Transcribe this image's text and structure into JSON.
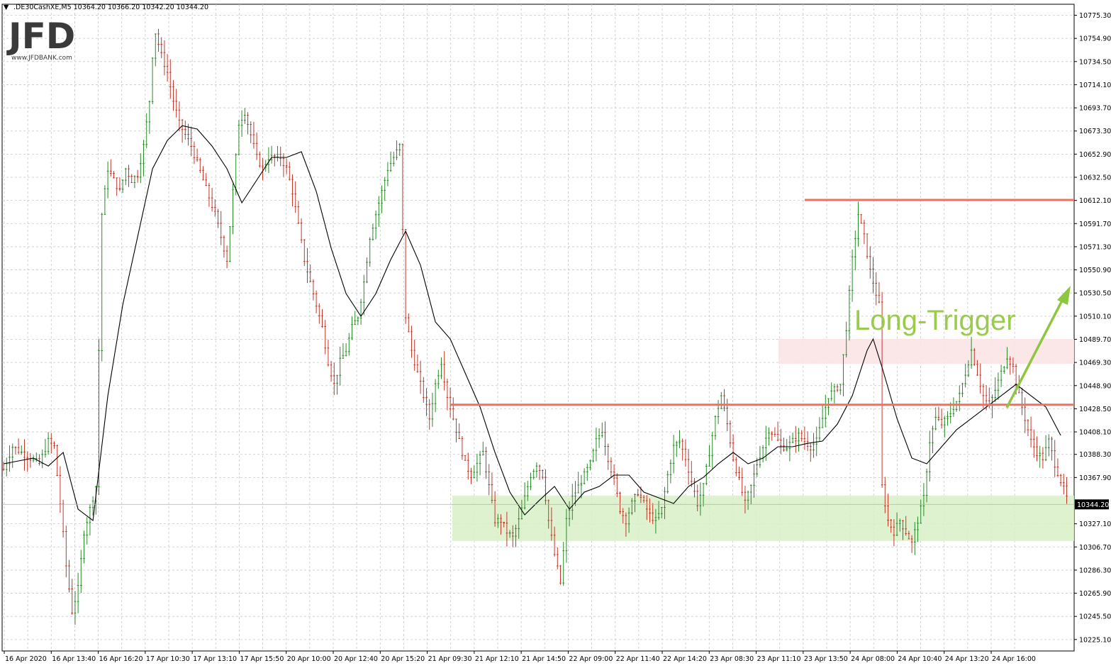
{
  "chart_data": {
    "type": "candlestick",
    "symbol_header": ".DE30CashXE,M5  10364.20 10366.20 10342.20 10344.20",
    "logo": {
      "text": "JFD",
      "subtext": "www.JFDBANK.com"
    },
    "ylim": [
      10215.0,
      10785.0
    ],
    "y_ticks": [
      10775.3,
      10754.9,
      10734.5,
      10714.1,
      10693.7,
      10673.3,
      10652.9,
      10632.5,
      10612.1,
      10591.7,
      10571.3,
      10550.9,
      10530.5,
      10510.1,
      10489.7,
      10469.3,
      10448.9,
      10428.5,
      10408.1,
      10388.3,
      10367.9,
      10327.1,
      10306.7,
      10286.3,
      10265.9,
      10245.5,
      10225.1
    ],
    "y_tick_labels": [
      "10775.30",
      "10754.90",
      "10734.50",
      "10714.10",
      "10693.70",
      "10673.30",
      "10652.90",
      "10632.50",
      "10612.10",
      "10591.70",
      "10571.30",
      "10550.90",
      "10530.50",
      "10510.10",
      "10489.70",
      "10469.30",
      "10448.90",
      "10428.50",
      "10408.10",
      "10388.30",
      "10367.90",
      "10327.10",
      "10306.70",
      "10286.30",
      "10265.90",
      "10245.50",
      "10225.10"
    ],
    "x_labels": [
      "16 Apr 2020",
      "16 Apr 13:40",
      "16 Apr 16:20",
      "17 Apr 10:30",
      "17 Apr 13:10",
      "17 Apr 15:50",
      "20 Apr 10:00",
      "20 Apr 12:40",
      "20 Apr 15:20",
      "21 Apr 09:30",
      "21 Apr 12:10",
      "21 Apr 14:50",
      "22 Apr 09:00",
      "22 Apr 11:40",
      "22 Apr 14:20",
      "23 Apr 08:30",
      "23 Apr 11:10",
      "23 Apr 13:50",
      "24 Apr 08:00",
      "24 Apr 10:40",
      "24 Apr 13:20",
      "24 Apr 16:00"
    ],
    "last_price": 10344.2,
    "last_price_label": "10344.20",
    "path_points": [
      [
        0,
        10375
      ],
      [
        3,
        10395
      ],
      [
        6,
        10390
      ],
      [
        9,
        10385
      ],
      [
        12,
        10380
      ],
      [
        15,
        10400
      ],
      [
        17,
        10395
      ],
      [
        19,
        10345
      ],
      [
        21,
        10290
      ],
      [
        23,
        10250
      ],
      [
        25,
        10270
      ],
      [
        27,
        10320
      ],
      [
        29,
        10340
      ],
      [
        31,
        10360
      ],
      [
        33,
        10600
      ],
      [
        35,
        10640
      ],
      [
        37,
        10630
      ],
      [
        39,
        10620
      ],
      [
        41,
        10640
      ],
      [
        43,
        10630
      ],
      [
        45,
        10635
      ],
      [
        47,
        10660
      ],
      [
        49,
        10700
      ],
      [
        50,
        10740
      ],
      [
        51,
        10760
      ],
      [
        53,
        10740
      ],
      [
        55,
        10725
      ],
      [
        57,
        10700
      ],
      [
        59,
        10680
      ],
      [
        61,
        10670
      ],
      [
        63,
        10660
      ],
      [
        65,
        10645
      ],
      [
        67,
        10630
      ],
      [
        69,
        10615
      ],
      [
        71,
        10600
      ],
      [
        73,
        10580
      ],
      [
        75,
        10560
      ],
      [
        77,
        10620
      ],
      [
        79,
        10680
      ],
      [
        81,
        10690
      ],
      [
        83,
        10670
      ],
      [
        85,
        10650
      ],
      [
        87,
        10640
      ],
      [
        89,
        10650
      ],
      [
        91,
        10650
      ],
      [
        93,
        10650
      ],
      [
        95,
        10640
      ],
      [
        97,
        10620
      ],
      [
        99,
        10590
      ],
      [
        101,
        10560
      ],
      [
        103,
        10540
      ],
      [
        105,
        10520
      ],
      [
        107,
        10500
      ],
      [
        109,
        10470
      ],
      [
        111,
        10450
      ],
      [
        113,
        10470
      ],
      [
        115,
        10480
      ],
      [
        117,
        10500
      ],
      [
        119,
        10510
      ],
      [
        121,
        10540
      ],
      [
        123,
        10580
      ],
      [
        125,
        10600
      ],
      [
        127,
        10620
      ],
      [
        129,
        10640
      ],
      [
        131,
        10650
      ],
      [
        133,
        10660
      ],
      [
        135,
        10510
      ],
      [
        137,
        10480
      ],
      [
        139,
        10460
      ],
      [
        141,
        10440
      ],
      [
        143,
        10420
      ],
      [
        145,
        10450
      ],
      [
        147,
        10470
      ],
      [
        149,
        10440
      ],
      [
        151,
        10420
      ],
      [
        153,
        10400
      ],
      [
        155,
        10380
      ],
      [
        157,
        10370
      ],
      [
        159,
        10380
      ],
      [
        161,
        10390
      ],
      [
        163,
        10360
      ],
      [
        165,
        10330
      ],
      [
        167,
        10330
      ],
      [
        169,
        10320
      ],
      [
        171,
        10315
      ],
      [
        173,
        10330
      ],
      [
        175,
        10350
      ],
      [
        177,
        10370
      ],
      [
        179,
        10380
      ],
      [
        181,
        10370
      ],
      [
        183,
        10330
      ],
      [
        185,
        10300
      ],
      [
        187,
        10275
      ],
      [
        189,
        10330
      ],
      [
        191,
        10350
      ],
      [
        193,
        10360
      ],
      [
        195,
        10370
      ],
      [
        197,
        10380
      ],
      [
        199,
        10400
      ],
      [
        201,
        10410
      ],
      [
        203,
        10385
      ],
      [
        205,
        10365
      ],
      [
        207,
        10340
      ],
      [
        209,
        10330
      ],
      [
        211,
        10345
      ],
      [
        213,
        10355
      ],
      [
        215,
        10345
      ],
      [
        217,
        10335
      ],
      [
        219,
        10330
      ],
      [
        221,
        10340
      ],
      [
        223,
        10370
      ],
      [
        225,
        10395
      ],
      [
        227,
        10400
      ],
      [
        229,
        10385
      ],
      [
        231,
        10365
      ],
      [
        233,
        10345
      ],
      [
        235,
        10360
      ],
      [
        237,
        10390
      ],
      [
        239,
        10420
      ],
      [
        241,
        10440
      ],
      [
        243,
        10415
      ],
      [
        245,
        10385
      ],
      [
        247,
        10365
      ],
      [
        249,
        10345
      ],
      [
        251,
        10360
      ],
      [
        253,
        10380
      ],
      [
        255,
        10395
      ],
      [
        257,
        10410
      ],
      [
        259,
        10405
      ],
      [
        261,
        10395
      ],
      [
        263,
        10395
      ],
      [
        265,
        10400
      ],
      [
        267,
        10405
      ],
      [
        269,
        10400
      ],
      [
        271,
        10395
      ],
      [
        273,
        10400
      ],
      [
        275,
        10420
      ],
      [
        277,
        10440
      ],
      [
        279,
        10445
      ],
      [
        281,
        10450
      ],
      [
        283,
        10500
      ],
      [
        285,
        10560
      ],
      [
        287,
        10600
      ],
      [
        289,
        10580
      ],
      [
        291,
        10550
      ],
      [
        293,
        10530
      ],
      [
        294,
        10520
      ],
      [
        295,
        10360
      ],
      [
        297,
        10330
      ],
      [
        299,
        10320
      ],
      [
        301,
        10330
      ],
      [
        303,
        10320
      ],
      [
        305,
        10310
      ],
      [
        307,
        10330
      ],
      [
        309,
        10350
      ],
      [
        311,
        10400
      ],
      [
        313,
        10420
      ],
      [
        315,
        10415
      ],
      [
        317,
        10420
      ],
      [
        319,
        10430
      ],
      [
        321,
        10440
      ],
      [
        323,
        10460
      ],
      [
        325,
        10480
      ],
      [
        327,
        10460
      ],
      [
        329,
        10440
      ],
      [
        331,
        10430
      ],
      [
        333,
        10445
      ],
      [
        335,
        10460
      ],
      [
        337,
        10475
      ],
      [
        339,
        10465
      ],
      [
        341,
        10440
      ],
      [
        343,
        10420
      ],
      [
        345,
        10400
      ],
      [
        347,
        10390
      ],
      [
        349,
        10385
      ],
      [
        351,
        10400
      ],
      [
        353,
        10380
      ],
      [
        355,
        10365
      ],
      [
        357,
        10350
      ]
    ],
    "ma_points": [
      [
        0,
        10380
      ],
      [
        10,
        10385
      ],
      [
        15,
        10378
      ],
      [
        20,
        10390
      ],
      [
        25,
        10340
      ],
      [
        30,
        10330
      ],
      [
        35,
        10440
      ],
      [
        40,
        10520
      ],
      [
        45,
        10580
      ],
      [
        50,
        10640
      ],
      [
        55,
        10665
      ],
      [
        60,
        10678
      ],
      [
        65,
        10675
      ],
      [
        70,
        10660
      ],
      [
        75,
        10640
      ],
      [
        80,
        10610
      ],
      [
        85,
        10630
      ],
      [
        90,
        10650
      ],
      [
        95,
        10650
      ],
      [
        100,
        10655
      ],
      [
        105,
        10620
      ],
      [
        110,
        10570
      ],
      [
        115,
        10530
      ],
      [
        120,
        10510
      ],
      [
        125,
        10530
      ],
      [
        130,
        10560
      ],
      [
        135,
        10585
      ],
      [
        140,
        10555
      ],
      [
        145,
        10505
      ],
      [
        150,
        10490
      ],
      [
        155,
        10460
      ],
      [
        160,
        10430
      ],
      [
        165,
        10390
      ],
      [
        170,
        10355
      ],
      [
        175,
        10335
      ],
      [
        180,
        10348
      ],
      [
        185,
        10360
      ],
      [
        190,
        10340
      ],
      [
        195,
        10355
      ],
      [
        200,
        10360
      ],
      [
        205,
        10370
      ],
      [
        210,
        10370
      ],
      [
        215,
        10355
      ],
      [
        220,
        10350
      ],
      [
        225,
        10345
      ],
      [
        230,
        10360
      ],
      [
        235,
        10368
      ],
      [
        240,
        10380
      ],
      [
        245,
        10390
      ],
      [
        250,
        10380
      ],
      [
        255,
        10385
      ],
      [
        260,
        10395
      ],
      [
        265,
        10395
      ],
      [
        270,
        10398
      ],
      [
        275,
        10400
      ],
      [
        280,
        10415
      ],
      [
        285,
        10440
      ],
      [
        290,
        10480
      ],
      [
        292,
        10490
      ],
      [
        295,
        10465
      ],
      [
        300,
        10420
      ],
      [
        305,
        10385
      ],
      [
        310,
        10380
      ],
      [
        315,
        10395
      ],
      [
        320,
        10410
      ],
      [
        325,
        10420
      ],
      [
        330,
        10430
      ],
      [
        335,
        10440
      ],
      [
        340,
        10450
      ],
      [
        345,
        10440
      ],
      [
        350,
        10430
      ],
      [
        355,
        10405
      ]
    ],
    "annotations": {
      "resistance_top": 10612.5,
      "resistance_mid": 10432.0,
      "green_zone": [
        10312.0,
        10352.0
      ],
      "pink_zone": [
        10468.0,
        10490.0
      ],
      "trigger_label": "Long-Trigger"
    },
    "colors": {
      "bull": "#2a8a2a",
      "bear": "#c0392b",
      "ma": "#000000",
      "resistance": "#f07060",
      "green_zone": "#d8f0c8",
      "pink_zone": "#fbe4e4",
      "arrow": "#8dc63f",
      "grid": "#c8c8c8"
    },
    "grid": true
  }
}
